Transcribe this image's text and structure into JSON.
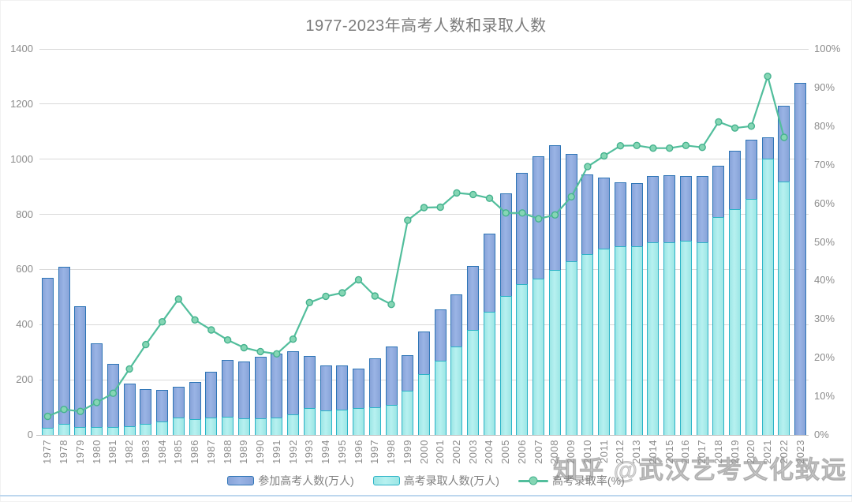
{
  "title": "1977-2023年高考人数和录取人数",
  "watermark": "知乎 @武汉艺考文化致远",
  "legend": [
    {
      "label": "参加高考人数(万人)",
      "kind": "bar-blue"
    },
    {
      "label": "高考录取人数(万人)",
      "kind": "bar-cyan"
    },
    {
      "label": "高考录取率(%)",
      "kind": "line-green"
    }
  ],
  "colors": {
    "bar_participants_fill": "#8FAADC",
    "bar_participants_border": "#2E75B6",
    "bar_admitted_fill": "#A5EAE9",
    "bar_admitted_border": "#2BB3C7",
    "line": "#52BE9C",
    "marker_fill": "#85D6B4",
    "marker_stroke": "#45B28E",
    "grid": "#D9D9D9",
    "axis_text": "#8C8C8C",
    "title_text": "#7C7C7C",
    "bottom_rule": "#BDD7EE"
  },
  "chart_data": {
    "type": "bar",
    "subtype": "bar+line combo, dual axis",
    "title": "1977-2023年高考人数和录取人数",
    "grid": true,
    "legend_position": "bottom",
    "categories": [
      1977,
      1978,
      1979,
      1980,
      1981,
      1982,
      1983,
      1984,
      1985,
      1986,
      1987,
      1988,
      1989,
      1990,
      1991,
      1992,
      1993,
      1994,
      1995,
      1996,
      1997,
      1998,
      1999,
      2000,
      2001,
      2002,
      2003,
      2004,
      2005,
      2006,
      2007,
      2008,
      2009,
      2010,
      2011,
      2012,
      2013,
      2014,
      2015,
      2016,
      2017,
      2018,
      2019,
      2020,
      2021,
      2022,
      2023
    ],
    "series": [
      {
        "name": "参加高考人数(万人)",
        "type": "bar",
        "axis": "left",
        "values": [
          570,
          610,
          468,
          333,
          259,
          187,
          167,
          164,
          176,
          191,
          228,
          272,
          266,
          283,
          296,
          303,
          286,
          251,
          253,
          241,
          278,
          320,
          288,
          375,
          454,
          510,
          613,
          729,
          877,
          950,
          1010,
          1050,
          1020,
          946,
          933,
          915,
          912,
          939,
          942,
          940,
          940,
          975,
          1031,
          1071,
          1078,
          1193,
          1278
        ]
      },
      {
        "name": "高考录取人数(万人)",
        "type": "bar",
        "axis": "left",
        "values": [
          27,
          40,
          28,
          28,
          28,
          32,
          39,
          48,
          62,
          57,
          62,
          67,
          60,
          61,
          62,
          75,
          98,
          90,
          93,
          97,
          100,
          108,
          160,
          221,
          268,
          320,
          382,
          447,
          504,
          546,
          566,
          599,
          629,
          657,
          675,
          685,
          684,
          698,
          700,
          705,
          700,
          791,
          820,
          857,
          1001,
          920,
          null
        ]
      },
      {
        "name": "高考录取率(%)",
        "type": "line",
        "axis": "right",
        "values": [
          4.8,
          6.6,
          6.1,
          8.4,
          10.8,
          17.1,
          23.4,
          29.3,
          35.2,
          29.8,
          27.2,
          24.6,
          22.6,
          21.6,
          21.0,
          24.8,
          34.3,
          35.9,
          36.8,
          40.2,
          36.0,
          33.8,
          55.6,
          58.9,
          59.0,
          62.7,
          62.3,
          61.3,
          57.5,
          57.5,
          56.0,
          57.0,
          61.7,
          69.5,
          72.3,
          74.9,
          75.0,
          74.3,
          74.3,
          75.0,
          74.5,
          81.1,
          79.5,
          80.0,
          92.9,
          77.1,
          null
        ]
      }
    ],
    "left_axis": {
      "min": 0,
      "max": 1400,
      "step": 200,
      "ticks": [
        "0",
        "200",
        "400",
        "600",
        "800",
        "1000",
        "1200",
        "1400"
      ]
    },
    "right_axis": {
      "min": 0,
      "max": 100,
      "step": 10,
      "ticks": [
        "0%",
        "10%",
        "20%",
        "30%",
        "40%",
        "50%",
        "60%",
        "70%",
        "80%",
        "90%",
        "100%"
      ]
    }
  }
}
